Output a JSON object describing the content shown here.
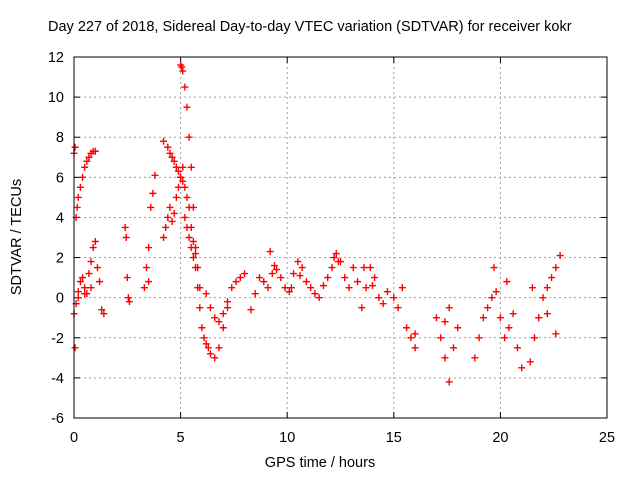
{
  "chart_data": {
    "type": "scatter",
    "title": "Day 227 of 2018, Sidereal Day-to-day VTEC variation (SDTVAR) for receiver kokr",
    "xlabel": "GPS time / hours",
    "ylabel": "SDTVAR / TECUs",
    "xlim": [
      0,
      25
    ],
    "ylim": [
      -6,
      12
    ],
    "xticks": [
      0,
      5,
      10,
      15,
      20,
      25
    ],
    "yticks": [
      -6,
      -4,
      -2,
      0,
      2,
      4,
      6,
      8,
      10,
      12
    ],
    "grid": true,
    "marker": "+",
    "series": [
      {
        "name": "SDTVAR",
        "color": "#ff0000",
        "x": [
          0.0,
          0.05,
          0.1,
          0.15,
          0.2,
          0.3,
          0.4,
          0.5,
          0.6,
          0.7,
          0.8,
          0.9,
          1.0,
          0.0,
          0.1,
          0.2,
          0.3,
          0.4,
          0.5,
          0.6,
          0.7,
          0.8,
          0.9,
          1.0,
          1.1,
          1.2,
          1.3,
          1.4,
          0.05,
          0.2,
          0.5,
          0.8,
          2.4,
          2.45,
          2.5,
          2.55,
          2.6,
          3.3,
          3.4,
          3.5,
          3.6,
          3.7,
          3.8,
          3.5,
          4.2,
          4.4,
          4.5,
          4.6,
          4.7,
          4.8,
          4.9,
          5.0,
          5.1,
          5.2,
          5.3,
          5.4,
          5.5,
          5.6,
          5.7,
          5.8,
          5.9,
          4.2,
          4.3,
          4.4,
          4.5,
          4.6,
          4.7,
          4.8,
          4.9,
          5.0,
          5.1,
          5.2,
          5.3,
          5.4,
          5.5,
          5.6,
          5.7,
          5.0,
          5.05,
          5.1,
          5.2,
          5.3,
          5.4,
          5.5,
          5.6,
          5.7,
          5.8,
          5.9,
          6.0,
          6.1,
          6.2,
          6.3,
          6.4,
          6.6,
          6.8,
          7.0,
          7.2,
          6.2,
          6.4,
          6.6,
          6.8,
          7.0,
          7.2,
          7.4,
          7.6,
          7.8,
          8.0,
          8.3,
          8.5,
          8.7,
          8.9,
          9.1,
          9.3,
          9.5,
          9.7,
          9.9,
          10.1,
          10.3,
          10.5,
          10.7,
          10.9,
          11.1,
          11.3,
          11.5,
          11.7,
          11.9,
          12.1,
          12.3,
          12.5,
          12.7,
          12.9,
          13.1,
          13.3,
          13.5,
          13.7,
          13.9,
          14.1,
          14.3,
          14.5,
          14.7,
          9.2,
          9.4,
          10.2,
          10.6,
          12.2,
          12.4,
          13.6,
          14.0,
          15.0,
          15.2,
          15.4,
          15.6,
          15.8,
          16.0,
          16.0,
          17.0,
          17.2,
          17.4,
          17.6,
          17.8,
          18.0,
          17.4,
          17.6,
          18.8,
          19.0,
          19.2,
          19.4,
          19.6,
          19.8,
          20.0,
          20.2,
          20.4,
          20.6,
          20.8,
          21.0,
          19.7,
          20.3,
          21.4,
          21.6,
          21.8,
          22.0,
          22.2,
          22.4,
          22.6,
          22.8,
          21.5,
          21.8,
          22.2,
          22.6
        ],
        "y": [
          7.2,
          7.5,
          4.0,
          4.5,
          5.0,
          5.5,
          6.0,
          6.5,
          6.8,
          7.0,
          7.2,
          7.3,
          7.3,
          -0.8,
          -0.3,
          0.3,
          0.8,
          1.0,
          0.5,
          0.2,
          1.2,
          1.8,
          2.5,
          2.8,
          1.5,
          0.8,
          -0.6,
          -0.8,
          -2.5,
          0.0,
          0.2,
          0.5,
          3.5,
          3.0,
          1.0,
          0.0,
          -0.2,
          0.5,
          1.5,
          2.5,
          4.5,
          5.2,
          6.1,
          0.8,
          7.8,
          7.5,
          7.2,
          7.0,
          6.8,
          6.5,
          6.3,
          6.0,
          5.8,
          5.5,
          5.0,
          4.5,
          3.5,
          2.8,
          2.2,
          1.5,
          0.5,
          3.0,
          3.5,
          4.0,
          4.5,
          3.8,
          4.2,
          5.0,
          5.5,
          6.0,
          6.5,
          4.0,
          3.5,
          3.0,
          2.5,
          2.0,
          1.5,
          11.6,
          11.5,
          11.3,
          10.5,
          9.5,
          8.0,
          6.5,
          4.5,
          2.5,
          0.5,
          -0.5,
          -1.5,
          -2.0,
          -2.3,
          -2.5,
          -2.8,
          -3.0,
          -2.5,
          -1.5,
          -0.5,
          0.2,
          -0.5,
          -1.0,
          -1.2,
          -0.8,
          -0.2,
          0.5,
          0.8,
          1.0,
          1.2,
          -0.6,
          0.2,
          1.0,
          0.8,
          0.5,
          1.2,
          1.4,
          1.0,
          0.5,
          0.3,
          1.2,
          1.8,
          1.5,
          0.8,
          0.5,
          0.2,
          0.0,
          0.6,
          1.0,
          1.5,
          2.2,
          1.8,
          1.0,
          0.5,
          1.5,
          0.8,
          -0.5,
          0.5,
          1.5,
          1.0,
          0.0,
          -0.3,
          0.3,
          2.3,
          1.6,
          0.5,
          1.1,
          2.0,
          1.8,
          1.5,
          0.6,
          0.0,
          -0.5,
          0.5,
          -1.5,
          -2.0,
          -1.8,
          -2.5,
          -1.0,
          -2.0,
          -3.0,
          -4.2,
          -2.5,
          -1.5,
          -1.2,
          -0.5,
          -3.0,
          -2.0,
          -1.0,
          -0.5,
          0.0,
          0.3,
          -1.0,
          -2.0,
          -1.5,
          -0.8,
          -2.5,
          -3.5,
          1.5,
          0.8,
          -3.2,
          -2.0,
          -1.0,
          0.0,
          0.5,
          1.0,
          1.5,
          2.1,
          0.5,
          -1.0,
          -0.8,
          -1.8
        ]
      }
    ]
  }
}
